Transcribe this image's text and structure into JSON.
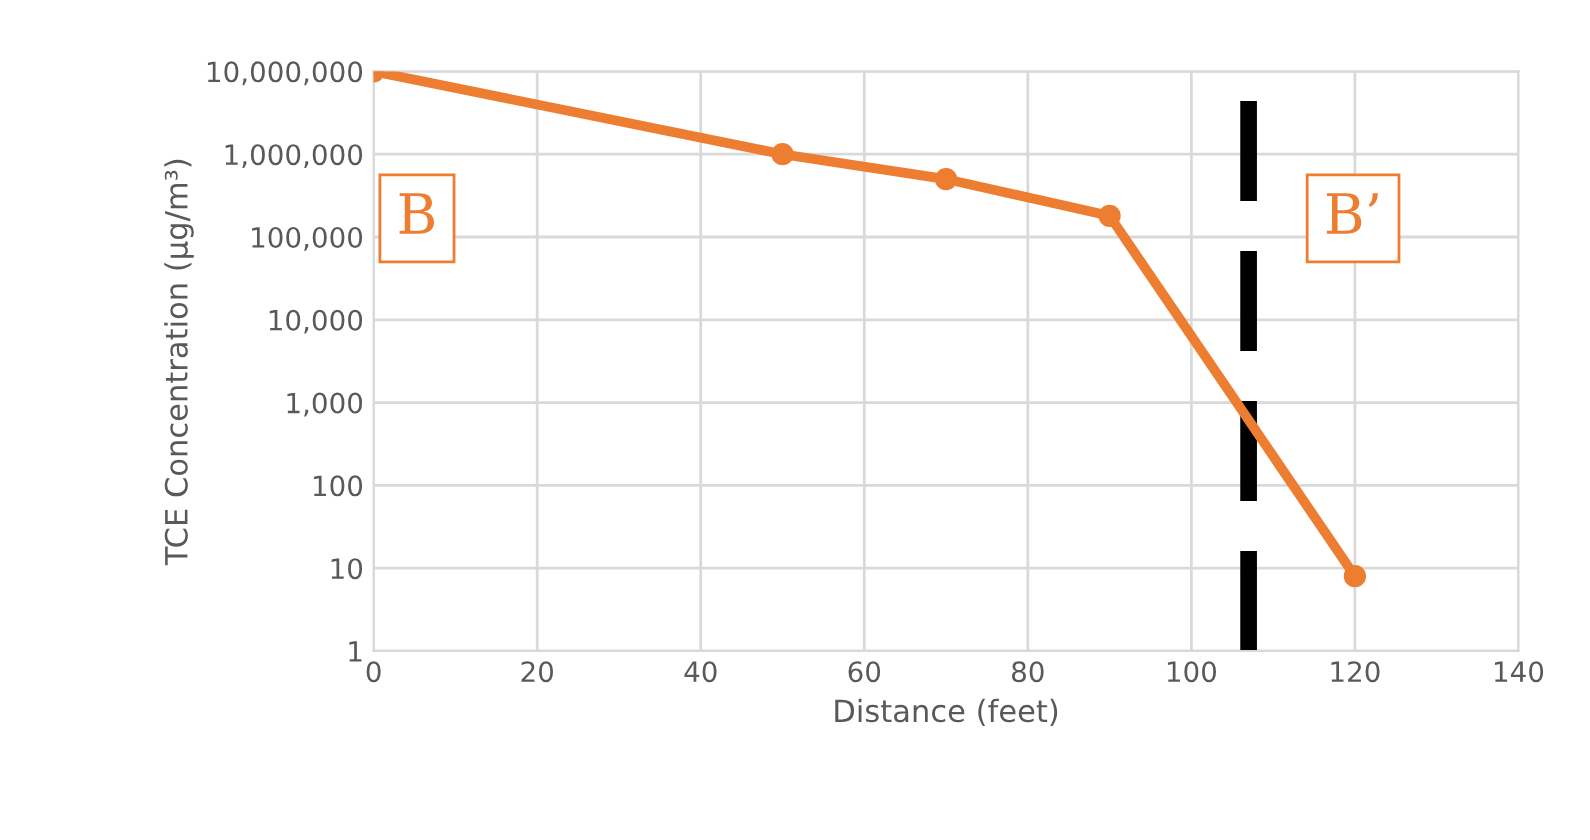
{
  "chart_data": {
    "type": "line",
    "xlabel": "Distance (feet)",
    "ylabel": "TCE Concentration (µg/m³)",
    "x": [
      0,
      50,
      70,
      90,
      120
    ],
    "series": [
      {
        "color": "#ed7d31",
        "values": [
          10000000,
          1000000,
          500000,
          180000,
          8
        ]
      }
    ],
    "log": "y",
    "xlim": [
      0,
      140
    ],
    "xticks": [
      0,
      20,
      40,
      60,
      80,
      100,
      120,
      140
    ],
    "ylim": [
      1,
      10000000
    ],
    "yticks": [
      {
        "value": 1,
        "label": "1"
      },
      {
        "value": 10,
        "label": "10"
      },
      {
        "value": 100,
        "label": "100"
      },
      {
        "value": 1000,
        "label": "1,000"
      },
      {
        "value": 10000,
        "label": "10,000"
      },
      {
        "value": 100000,
        "label": "100,000"
      },
      {
        "value": 1000000,
        "label": "1,000,000"
      },
      {
        "value": 10000000,
        "label": "10,000,000"
      }
    ],
    "grid": true,
    "marker": "circle",
    "line_style": "solid",
    "ref_lines": [
      {
        "axis": "x",
        "value": 107,
        "color": "#000000",
        "line_style": "dashed"
      }
    ],
    "annotations": [
      "B",
      "B’"
    ]
  }
}
